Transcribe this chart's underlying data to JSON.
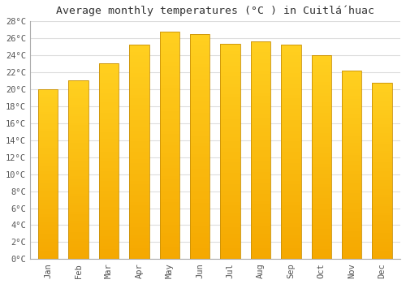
{
  "title": "Average monthly temperatures (°C ) in Cuitlá́huac",
  "months": [
    "Jan",
    "Feb",
    "Mar",
    "Apr",
    "May",
    "Jun",
    "Jul",
    "Aug",
    "Sep",
    "Oct",
    "Nov",
    "Dec"
  ],
  "values": [
    20.0,
    21.0,
    23.0,
    25.2,
    26.7,
    26.5,
    25.3,
    25.6,
    25.2,
    24.0,
    22.2,
    20.7
  ],
  "ylim": [
    0,
    28
  ],
  "ytick_step": 2,
  "bar_color_bottom": "#F5A800",
  "bar_color_top": "#FFD020",
  "bar_edge_color": "#C8900A",
  "background_color": "#FFFFFF",
  "grid_color": "#DDDDDD",
  "title_fontsize": 9.5,
  "tick_fontsize": 7.5,
  "bar_width": 0.65,
  "n_gradient_segments": 60
}
